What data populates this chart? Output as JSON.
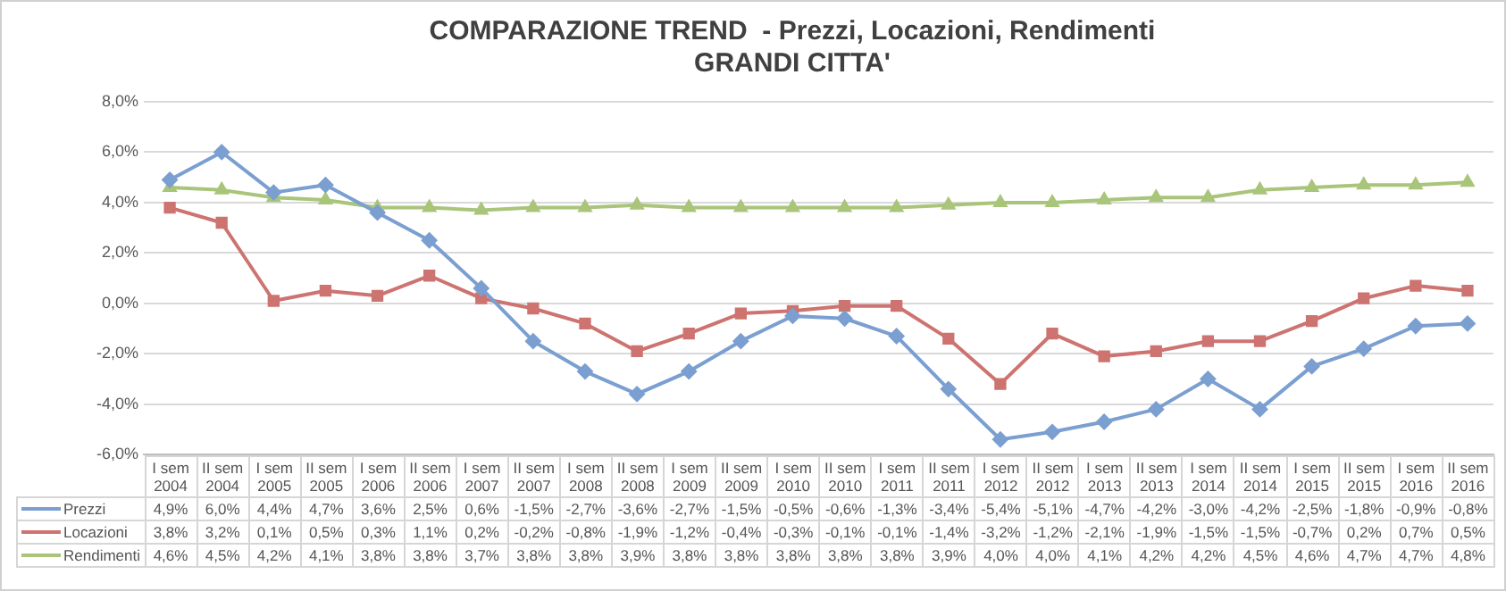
{
  "chart_data": {
    "type": "line",
    "title": "COMPARAZIONE TREND  - Prezzi, Locazioni, Rendimenti\nGRANDI CITTA'",
    "categories": [
      "I sem 2004",
      "II sem 2004",
      "I sem 2005",
      "II sem 2005",
      "I sem 2006",
      "II sem 2006",
      "I sem 2007",
      "II sem 2007",
      "I sem 2008",
      "II sem 2008",
      "I sem 2009",
      "II sem 2009",
      "I sem 2010",
      "II sem 2010",
      "I sem 2011",
      "II sem 2011",
      "I sem 2012",
      "II sem 2012",
      "I sem 2013",
      "II sem 2013",
      "I sem 2014",
      "II sem 2014",
      "I sem 2015",
      "II sem 2015",
      "I sem 2016",
      "II sem 2016"
    ],
    "series": [
      {
        "name": "Prezzi",
        "color": "#7a9fd0",
        "marker": "diamond",
        "values": [
          4.9,
          6.0,
          4.4,
          4.7,
          3.6,
          2.5,
          0.6,
          -1.5,
          -2.7,
          -3.6,
          -2.7,
          -1.5,
          -0.5,
          -0.6,
          -1.3,
          -3.4,
          -5.4,
          -5.1,
          -4.7,
          -4.2,
          -3.0,
          -4.2,
          -2.5,
          -1.8,
          -0.9,
          -0.8
        ],
        "value_labels": [
          "4,9%",
          "6,0%",
          "4,4%",
          "4,7%",
          "3,6%",
          "2,5%",
          "0,6%",
          "-1,5%",
          "-2,7%",
          "-3,6%",
          "-2,7%",
          "-1,5%",
          "-0,5%",
          "-0,6%",
          "-1,3%",
          "-3,4%",
          "-5,4%",
          "-5,1%",
          "-4,7%",
          "-4,2%",
          "-3,0%",
          "-4,2%",
          "-2,5%",
          "-1,8%",
          "-0,9%",
          "-0,8%"
        ]
      },
      {
        "name": "Locazioni",
        "color": "#cd7370",
        "marker": "square",
        "values": [
          3.8,
          3.2,
          0.1,
          0.5,
          0.3,
          1.1,
          0.2,
          -0.2,
          -0.8,
          -1.9,
          -1.2,
          -0.4,
          -0.3,
          -0.1,
          -0.1,
          -1.4,
          -3.2,
          -1.2,
          -2.1,
          -1.9,
          -1.5,
          -1.5,
          -0.7,
          0.2,
          0.7,
          0.5
        ],
        "value_labels": [
          "3,8%",
          "3,2%",
          "0,1%",
          "0,5%",
          "0,3%",
          "1,1%",
          "0,2%",
          "-0,2%",
          "-0,8%",
          "-1,9%",
          "-1,2%",
          "-0,4%",
          "-0,3%",
          "-0,1%",
          "-0,1%",
          "-1,4%",
          "-3,2%",
          "-1,2%",
          "-2,1%",
          "-1,9%",
          "-1,5%",
          "-1,5%",
          "-0,7%",
          "0,2%",
          "0,7%",
          "0,5%"
        ]
      },
      {
        "name": "Rendimenti",
        "color": "#a8c57a",
        "marker": "triangle",
        "values": [
          4.6,
          4.5,
          4.2,
          4.1,
          3.8,
          3.8,
          3.7,
          3.8,
          3.8,
          3.9,
          3.8,
          3.8,
          3.8,
          3.8,
          3.8,
          3.9,
          4.0,
          4.0,
          4.1,
          4.2,
          4.2,
          4.5,
          4.6,
          4.7,
          4.7,
          4.8
        ],
        "value_labels": [
          "4,6%",
          "4,5%",
          "4,2%",
          "4,1%",
          "3,8%",
          "3,8%",
          "3,7%",
          "3,8%",
          "3,8%",
          "3,9%",
          "3,8%",
          "3,8%",
          "3,8%",
          "3,8%",
          "3,8%",
          "3,9%",
          "4,0%",
          "4,0%",
          "4,1%",
          "4,2%",
          "4,2%",
          "4,5%",
          "4,6%",
          "4,7%",
          "4,7%",
          "4,8%"
        ]
      }
    ],
    "ylim": [
      -6,
      8
    ],
    "yticks": [
      {
        "value": -6,
        "label": "-6,0%"
      },
      {
        "value": -4,
        "label": "-4,0%"
      },
      {
        "value": -2,
        "label": "-2,0%"
      },
      {
        "value": 0,
        "label": "0,0%"
      },
      {
        "value": 2,
        "label": "2,0%"
      },
      {
        "value": 4,
        "label": "4,0%"
      },
      {
        "value": 6,
        "label": "6,0%"
      },
      {
        "value": 8,
        "label": "8,0%"
      }
    ],
    "grid": "y",
    "legend": "bottom",
    "line_style": "solid"
  }
}
